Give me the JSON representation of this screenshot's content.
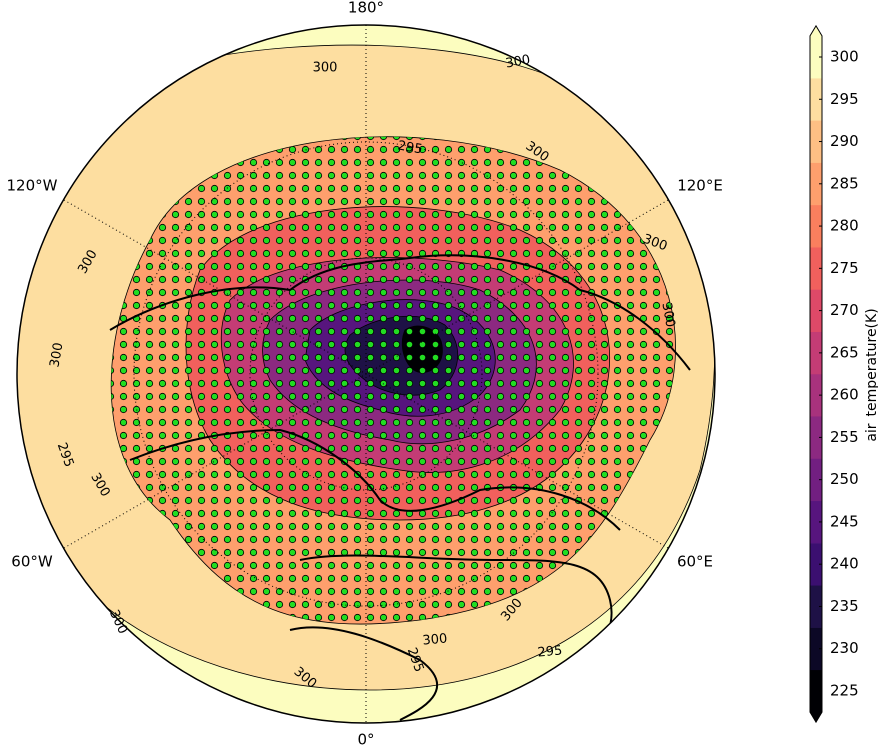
{
  "map": {
    "longitude_labels": [
      "180°",
      "120°E",
      "60°E",
      "0°",
      "60°W",
      "120°W"
    ],
    "contour_labels": [
      "300",
      "300",
      "300",
      "295",
      "300",
      "300",
      "295",
      "300",
      "300",
      "300",
      "300",
      "300",
      "295",
      "300",
      "295",
      "300"
    ]
  },
  "colorbar": {
    "label": "air_temperature(K)",
    "ticks": [
      225,
      230,
      235,
      240,
      245,
      250,
      255,
      260,
      265,
      270,
      275,
      280,
      285,
      290,
      295,
      300
    ],
    "lim": [
      222.5,
      302.5
    ],
    "colors": [
      "#000004",
      "#0c0826",
      "#1e1146",
      "#3b0f70",
      "#57157e",
      "#721f81",
      "#8c2981",
      "#a8327d",
      "#c43c75",
      "#de4968",
      "#f1605d",
      "#fa7f5e",
      "#fe9f6d",
      "#febf84",
      "#fddea0",
      "#fcfdbf"
    ]
  }
}
